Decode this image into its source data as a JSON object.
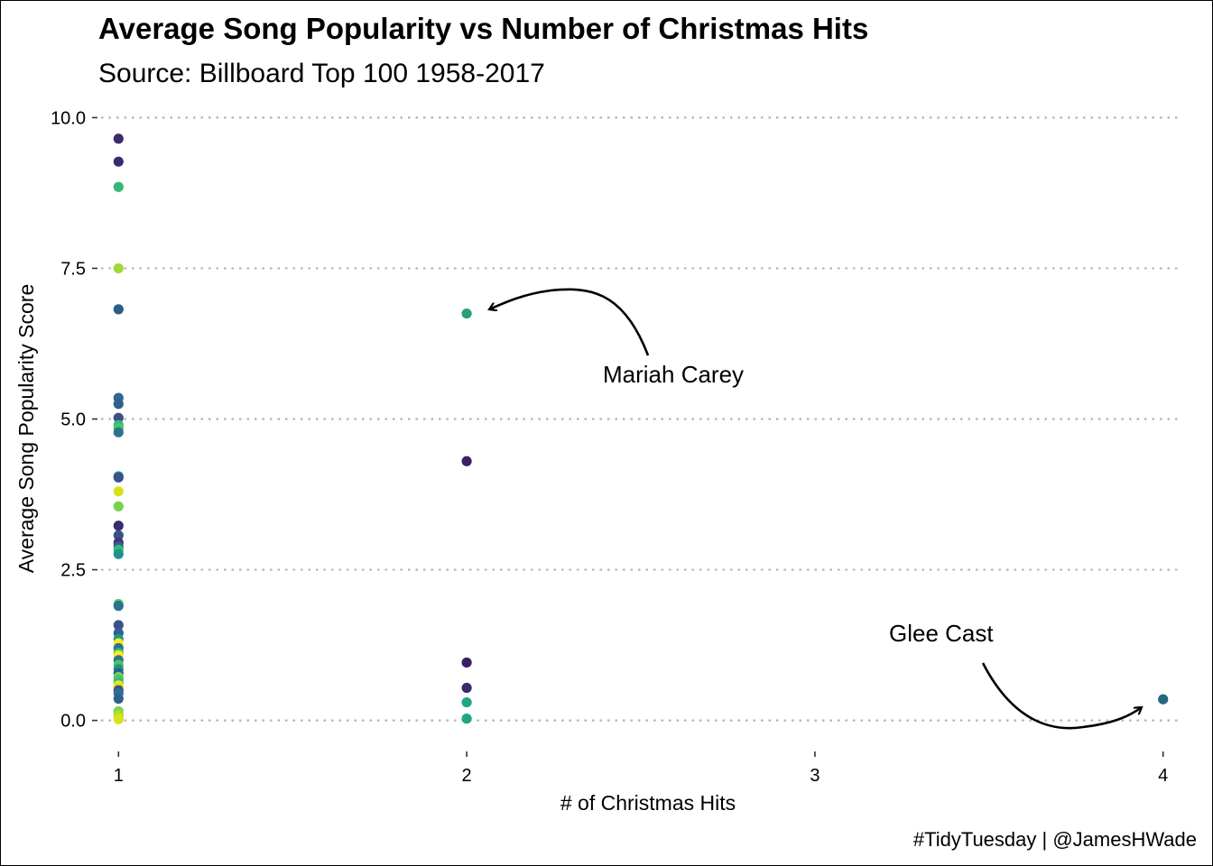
{
  "chart_data": {
    "type": "scatter",
    "title": "Average Song Popularity vs Number of Christmas Hits",
    "subtitle": "Source: Billboard Top 100 1958-2017",
    "xlabel": "# of Christmas Hits",
    "ylabel": "Average Song Popularity Score",
    "caption": "#TidyTuesday | @JamesHWade",
    "xlim": [
      0.95,
      4.05
    ],
    "ylim": [
      -0.35,
      10.35
    ],
    "x_ticks": [
      1,
      2,
      3,
      4
    ],
    "x_tick_labels": [
      "1",
      "2",
      "3",
      "4"
    ],
    "y_ticks": [
      0,
      2.5,
      5,
      7.5,
      10
    ],
    "y_tick_labels": [
      "0.0",
      "2.5",
      "5.0",
      "7.5",
      "10.0"
    ],
    "grid": "horizontal dotted",
    "points": [
      {
        "x": 1,
        "y": 9.65,
        "color": "#3b2a6e"
      },
      {
        "x": 1,
        "y": 9.27,
        "color": "#3b2a6e"
      },
      {
        "x": 1,
        "y": 8.85,
        "color": "#35b779"
      },
      {
        "x": 1,
        "y": 7.5,
        "color": "#a0da39"
      },
      {
        "x": 1,
        "y": 6.82,
        "color": "#2c5d8a"
      },
      {
        "x": 1,
        "y": 5.35,
        "color": "#2a6b8e"
      },
      {
        "x": 1,
        "y": 5.25,
        "color": "#31608d"
      },
      {
        "x": 1,
        "y": 5.02,
        "color": "#3a5189"
      },
      {
        "x": 1,
        "y": 4.9,
        "color": "#35b779"
      },
      {
        "x": 1,
        "y": 4.85,
        "color": "#4ec36b"
      },
      {
        "x": 1,
        "y": 4.78,
        "color": "#2c728e"
      },
      {
        "x": 1,
        "y": 4.05,
        "color": "#1f988b"
      },
      {
        "x": 1,
        "y": 4.03,
        "color": "#3a5189"
      },
      {
        "x": 1,
        "y": 3.8,
        "color": "#d8e219"
      },
      {
        "x": 1,
        "y": 3.55,
        "color": "#7ad151"
      },
      {
        "x": 1,
        "y": 3.23,
        "color": "#3b2a6e"
      },
      {
        "x": 1,
        "y": 3.07,
        "color": "#3a5189"
      },
      {
        "x": 1,
        "y": 2.95,
        "color": "#46337e"
      },
      {
        "x": 1,
        "y": 2.88,
        "color": "#31608d"
      },
      {
        "x": 1,
        "y": 2.83,
        "color": "#35b779"
      },
      {
        "x": 1,
        "y": 2.76,
        "color": "#21918c"
      },
      {
        "x": 1,
        "y": 1.93,
        "color": "#4ec36b"
      },
      {
        "x": 1,
        "y": 1.9,
        "color": "#2c728e"
      },
      {
        "x": 1,
        "y": 1.58,
        "color": "#3a5189"
      },
      {
        "x": 1,
        "y": 1.45,
        "color": "#31608d"
      },
      {
        "x": 1,
        "y": 1.35,
        "color": "#1f988b"
      },
      {
        "x": 1,
        "y": 1.28,
        "color": "#fde725"
      },
      {
        "x": 1,
        "y": 1.2,
        "color": "#2c728e"
      },
      {
        "x": 1,
        "y": 1.12,
        "color": "#35b779"
      },
      {
        "x": 1,
        "y": 1.08,
        "color": "#fde725"
      },
      {
        "x": 1,
        "y": 1.0,
        "color": "#2a788e"
      },
      {
        "x": 1,
        "y": 0.92,
        "color": "#4ec36b"
      },
      {
        "x": 1,
        "y": 0.85,
        "color": "#21918c"
      },
      {
        "x": 1,
        "y": 0.78,
        "color": "#2c5d8a"
      },
      {
        "x": 1,
        "y": 0.72,
        "color": "#7ad151"
      },
      {
        "x": 1,
        "y": 0.68,
        "color": "#4ec36b"
      },
      {
        "x": 1,
        "y": 0.62,
        "color": "#35b779"
      },
      {
        "x": 1,
        "y": 0.58,
        "color": "#fde725"
      },
      {
        "x": 1,
        "y": 0.55,
        "color": "#d8e219"
      },
      {
        "x": 1,
        "y": 0.5,
        "color": "#3a5189"
      },
      {
        "x": 1,
        "y": 0.45,
        "color": "#2c728e"
      },
      {
        "x": 1,
        "y": 0.36,
        "color": "#31608d"
      },
      {
        "x": 1,
        "y": 0.15,
        "color": "#7ad151"
      },
      {
        "x": 1,
        "y": 0.1,
        "color": "#a0da39"
      },
      {
        "x": 1,
        "y": 0.06,
        "color": "#b5de2b"
      },
      {
        "x": 1,
        "y": 0.02,
        "color": "#d8e219"
      },
      {
        "x": 2,
        "y": 6.75,
        "color": "#2a9d7c"
      },
      {
        "x": 2,
        "y": 4.3,
        "color": "#3b1f63"
      },
      {
        "x": 2,
        "y": 0.96,
        "color": "#3b1f63"
      },
      {
        "x": 2,
        "y": 0.54,
        "color": "#3b2a6e"
      },
      {
        "x": 2,
        "y": 0.3,
        "color": "#21a685"
      },
      {
        "x": 2,
        "y": 0.03,
        "color": "#21a685"
      },
      {
        "x": 4,
        "y": 0.35,
        "color": "#26687e"
      }
    ],
    "annotations": [
      {
        "label": "Mariah Carey",
        "x": 2,
        "y": 6.75
      },
      {
        "label": "Glee Cast",
        "x": 4,
        "y": 0.35
      }
    ]
  }
}
